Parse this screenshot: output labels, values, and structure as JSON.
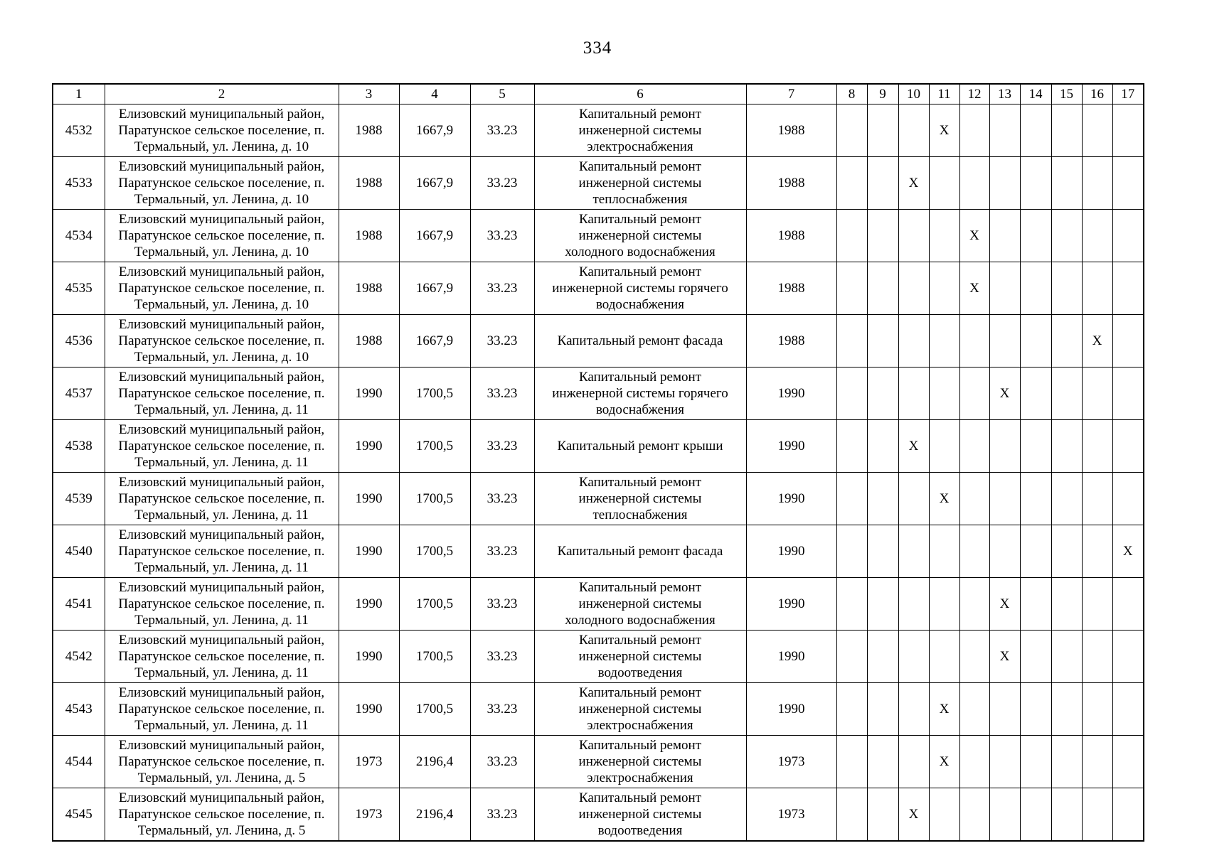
{
  "page_number": "334",
  "table": {
    "headers": [
      "1",
      "2",
      "3",
      "4",
      "5",
      "6",
      "7",
      "8",
      "9",
      "10",
      "11",
      "12",
      "13",
      "14",
      "15",
      "16",
      "17"
    ],
    "mark_symbol": "X",
    "mark_columns_start": 8,
    "mark_columns_end": 17,
    "rows": [
      {
        "num": "4532",
        "address": "Елизовский муниципальный район,\nПаратунское сельское поселение, п.\nТермальный, ул. Ленина, д. 10",
        "year_built": "1988",
        "area": "1667,9",
        "code": "33.23",
        "work": "Капитальный ремонт\nинженерной системы\nэлектроснабжения",
        "plan_year": "1988",
        "mark_column": 11
      },
      {
        "num": "4533",
        "address": "Елизовский муниципальный район,\nПаратунское сельское поселение, п.\nТермальный, ул. Ленина, д. 10",
        "year_built": "1988",
        "area": "1667,9",
        "code": "33.23",
        "work": "Капитальный ремонт\nинженерной системы\nтеплоснабжения",
        "plan_year": "1988",
        "mark_column": 10
      },
      {
        "num": "4534",
        "address": "Елизовский муниципальный район,\nПаратунское сельское поселение, п.\nТермальный, ул. Ленина, д. 10",
        "year_built": "1988",
        "area": "1667,9",
        "code": "33.23",
        "work": "Капитальный ремонт\nинженерной системы\nхолодного водоснабжения",
        "plan_year": "1988",
        "mark_column": 12
      },
      {
        "num": "4535",
        "address": "Елизовский муниципальный район,\nПаратунское сельское поселение, п.\nТермальный, ул. Ленина, д. 10",
        "year_built": "1988",
        "area": "1667,9",
        "code": "33.23",
        "work": "Капитальный ремонт\nинженерной системы горячего\nводоснабжения",
        "plan_year": "1988",
        "mark_column": 12
      },
      {
        "num": "4536",
        "address": "Елизовский муниципальный район,\nПаратунское сельское поселение, п.\nТермальный, ул. Ленина, д. 10",
        "year_built": "1988",
        "area": "1667,9",
        "code": "33.23",
        "work": "Капитальный ремонт фасада",
        "plan_year": "1988",
        "mark_column": 16
      },
      {
        "num": "4537",
        "address": "Елизовский муниципальный район,\nПаратунское сельское поселение, п.\nТермальный, ул. Ленина, д. 11",
        "year_built": "1990",
        "area": "1700,5",
        "code": "33.23",
        "work": "Капитальный ремонт\nинженерной системы горячего\nводоснабжения",
        "plan_year": "1990",
        "mark_column": 13
      },
      {
        "num": "4538",
        "address": "Елизовский муниципальный район,\nПаратунское сельское поселение, п.\nТермальный, ул. Ленина, д. 11",
        "year_built": "1990",
        "area": "1700,5",
        "code": "33.23",
        "work": "Капитальный ремонт крыши",
        "plan_year": "1990",
        "mark_column": 10
      },
      {
        "num": "4539",
        "address": "Елизовский муниципальный район,\nПаратунское сельское поселение, п.\nТермальный, ул. Ленина, д. 11",
        "year_built": "1990",
        "area": "1700,5",
        "code": "33.23",
        "work": "Капитальный ремонт\nинженерной системы\nтеплоснабжения",
        "plan_year": "1990",
        "mark_column": 11
      },
      {
        "num": "4540",
        "address": "Елизовский муниципальный район,\nПаратунское сельское поселение, п.\nТермальный, ул. Ленина, д. 11",
        "year_built": "1990",
        "area": "1700,5",
        "code": "33.23",
        "work": "Капитальный ремонт фасада",
        "plan_year": "1990",
        "mark_column": 17
      },
      {
        "num": "4541",
        "address": "Елизовский муниципальный район,\nПаратунское сельское поселение, п.\nТермальный, ул. Ленина, д. 11",
        "year_built": "1990",
        "area": "1700,5",
        "code": "33.23",
        "work": "Капитальный ремонт\nинженерной системы\nхолодного водоснабжения",
        "plan_year": "1990",
        "mark_column": 13
      },
      {
        "num": "4542",
        "address": "Елизовский муниципальный район,\nПаратунское сельское поселение, п.\nТермальный, ул. Ленина, д. 11",
        "year_built": "1990",
        "area": "1700,5",
        "code": "33.23",
        "work": "Капитальный ремонт\nинженерной системы\nводоотведения",
        "plan_year": "1990",
        "mark_column": 13
      },
      {
        "num": "4543",
        "address": "Елизовский муниципальный район,\nПаратунское сельское поселение, п.\nТермальный, ул. Ленина, д. 11",
        "year_built": "1990",
        "area": "1700,5",
        "code": "33.23",
        "work": "Капитальный ремонт\nинженерной системы\nэлектроснабжения",
        "plan_year": "1990",
        "mark_column": 11
      },
      {
        "num": "4544",
        "address": "Елизовский муниципальный район,\nПаратунское сельское поселение, п.\nТермальный, ул. Ленина, д. 5",
        "year_built": "1973",
        "area": "2196,4",
        "code": "33.23",
        "work": "Капитальный ремонт\nинженерной системы\nэлектроснабжения",
        "plan_year": "1973",
        "mark_column": 11
      },
      {
        "num": "4545",
        "address": "Елизовский муниципальный район,\nПаратунское сельское поселение, п.\nТермальный, ул. Ленина, д. 5",
        "year_built": "1973",
        "area": "2196,4",
        "code": "33.23",
        "work": "Капитальный ремонт\nинженерной системы\nводоотведения",
        "plan_year": "1973",
        "mark_column": 10
      }
    ]
  }
}
